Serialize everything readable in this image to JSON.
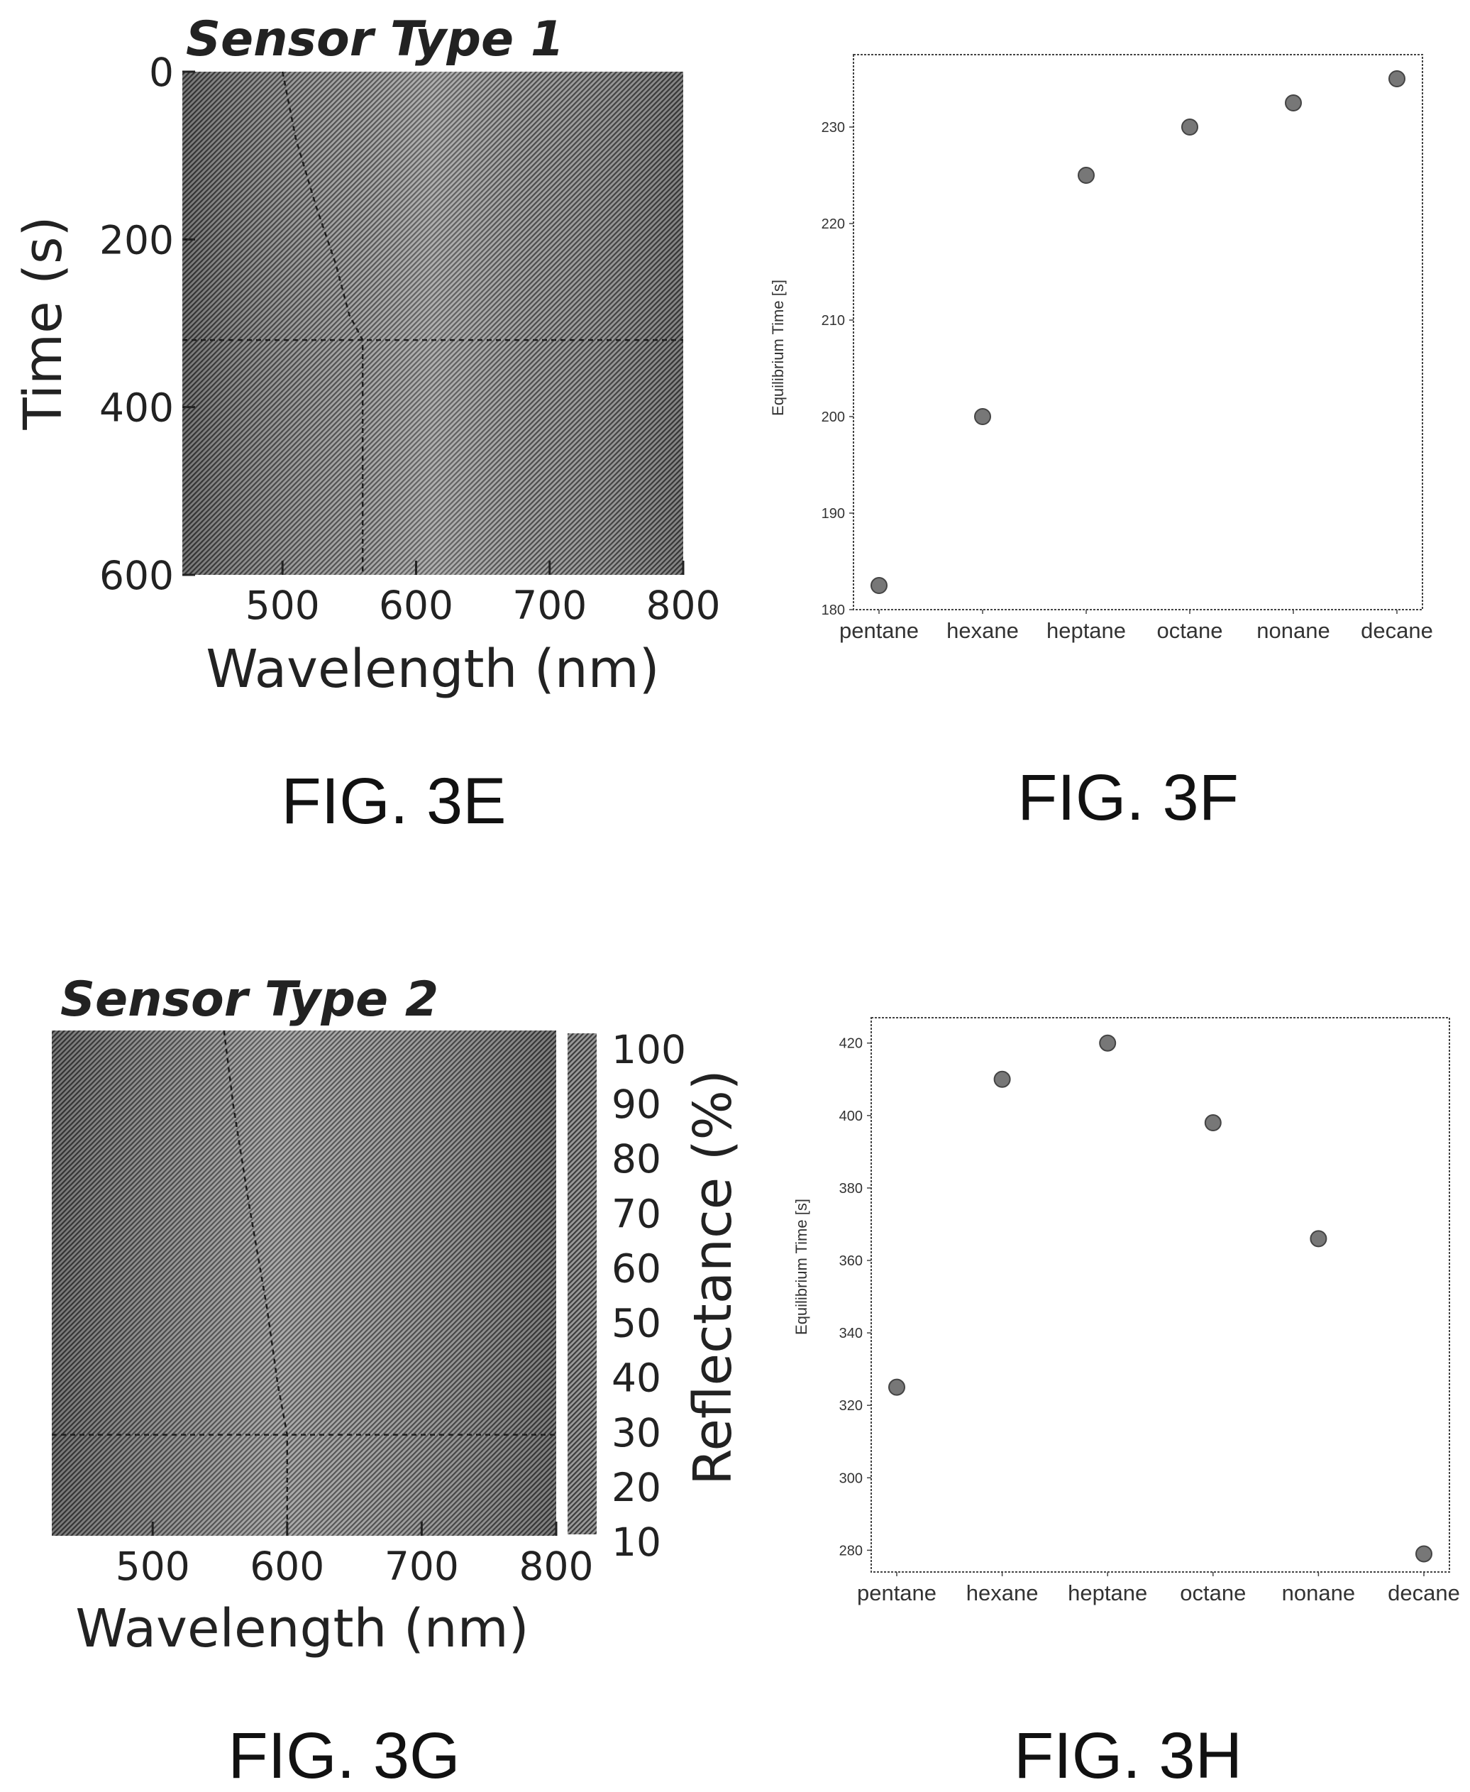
{
  "colors": {
    "ink": "#222222",
    "heatmap_fill": "#7a7a7a",
    "dashed": "#1e1e1e",
    "marker": "#777777"
  },
  "captions": {
    "fig3e": "FIG. 3E",
    "fig3f": "FIG. 3F",
    "fig3g": "FIG. 3G",
    "fig3h": "FIG. 3H"
  },
  "chart_data": [
    {
      "id": "fig3e",
      "type": "heatmap",
      "title": "Sensor Type 1",
      "xlabel": "Wavelength (nm)",
      "ylabel": "Time (s)",
      "xlim": [
        425,
        800
      ],
      "ylim": [
        600,
        0
      ],
      "x_ticks": [
        500,
        600,
        700,
        800
      ],
      "y_ticks": [
        0,
        200,
        400,
        600
      ],
      "guide_curve": {
        "x": [
          500,
          510,
          525,
          540,
          550,
          560,
          560
        ],
        "y": [
          0,
          80,
          160,
          230,
          290,
          320,
          600
        ]
      },
      "crosshair": {
        "x": 560,
        "y": 320
      }
    },
    {
      "id": "fig3f",
      "type": "scatter",
      "title": "",
      "xlabel": "",
      "ylabel": "Equilibrium Time [s]",
      "categories": [
        "pentane",
        "hexane",
        "heptane",
        "octane",
        "nonane",
        "decane"
      ],
      "values": [
        182.5,
        200,
        225,
        230,
        232.5,
        235
      ],
      "ylim": [
        180,
        237.5
      ],
      "y_ticks": [
        180,
        190,
        200,
        210,
        220,
        230
      ]
    },
    {
      "id": "fig3g",
      "type": "heatmap",
      "title": "Sensor Type 2",
      "xlabel": "Wavelength (nm)",
      "ylabel": "",
      "xlim": [
        425,
        800
      ],
      "x_ticks": [
        500,
        600,
        700,
        800
      ],
      "guide_curve": {
        "x": [
          553,
          560,
          572,
          585,
          593,
          600,
          600
        ],
        "y": [
          0,
          0.15,
          0.35,
          0.55,
          0.7,
          0.8,
          1
        ]
      },
      "crosshair": {
        "x": 600,
        "y": 0.8
      },
      "colorbar": {
        "label": "Reflectance (%)",
        "ticks": [
          100,
          90,
          80,
          70,
          60,
          50,
          40,
          30,
          20,
          10
        ]
      }
    },
    {
      "id": "fig3h",
      "type": "scatter",
      "title": "",
      "xlabel": "",
      "ylabel": "Equilibrium Time [s]",
      "categories": [
        "pentane",
        "hexane",
        "heptane",
        "octane",
        "nonane",
        "decane"
      ],
      "values": [
        325,
        410,
        420,
        398,
        366,
        279
      ],
      "ylim": [
        274,
        427
      ],
      "y_ticks": [
        280,
        300,
        320,
        340,
        360,
        380,
        400,
        420
      ]
    }
  ]
}
